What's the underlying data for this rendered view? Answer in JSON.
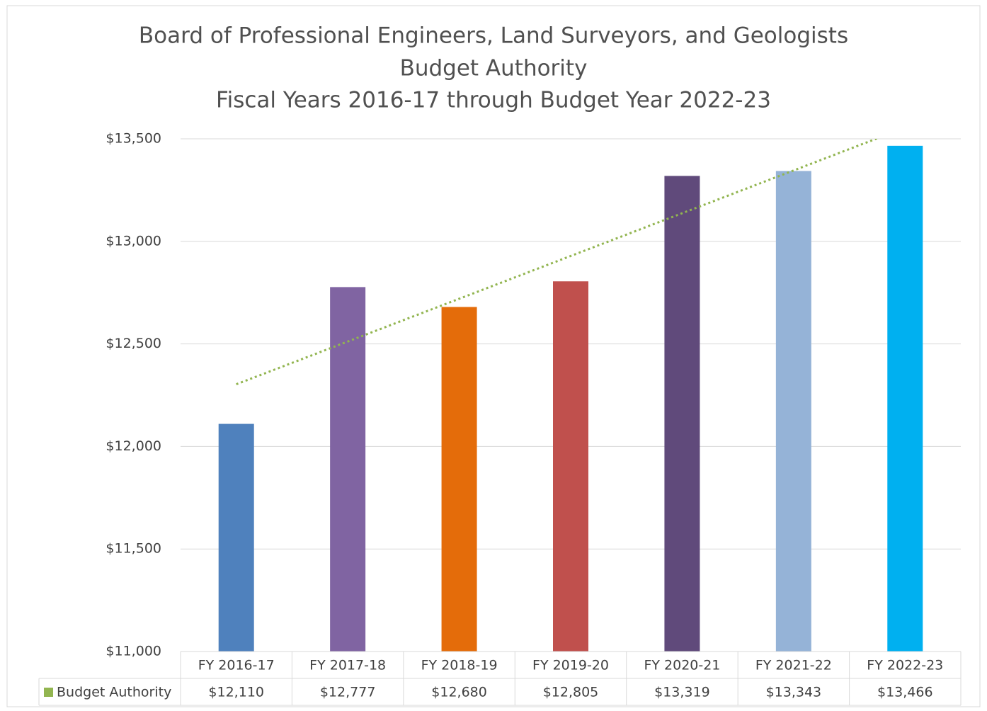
{
  "chart_data": {
    "type": "bar",
    "title": [
      "Board of Professional Engineers, Land Surveyors, and Geologists",
      "Budget Authority",
      "Fiscal Years 2016-17 through Budget Year 2022-23"
    ],
    "categories": [
      "FY 2016-17",
      "FY 2017-18",
      "FY 2018-19",
      "FY 2019-20",
      "FY 2020-21",
      "FY 2021-22",
      "FY 2022-23"
    ],
    "series": [
      {
        "name": "Budget Authority",
        "colors": [
          "#4f81bd",
          "#8064a2",
          "#e46c0a",
          "#c0504d",
          "#604a7b",
          "#95b3d7",
          "#00b0f0"
        ],
        "values": [
          12110,
          12777,
          12680,
          12805,
          13319,
          13343,
          13466
        ],
        "value_labels": [
          "$12,110",
          "$12,777",
          "$12,680",
          "$12,805",
          "$13,319",
          "$13,343",
          "$13,466"
        ]
      }
    ],
    "ylim": [
      11000,
      13500
    ],
    "yticks": [
      {
        "value": 11000,
        "label": "$11,000"
      },
      {
        "value": 11500,
        "label": "$11,500"
      },
      {
        "value": 12000,
        "label": "$12,000"
      },
      {
        "value": 12500,
        "label": "$12,500"
      },
      {
        "value": 13000,
        "label": "$13,000"
      },
      {
        "value": 13500,
        "label": "$13,500"
      }
    ],
    "grid": true,
    "trendline": {
      "type": "linear",
      "color": "#92b550"
    }
  }
}
